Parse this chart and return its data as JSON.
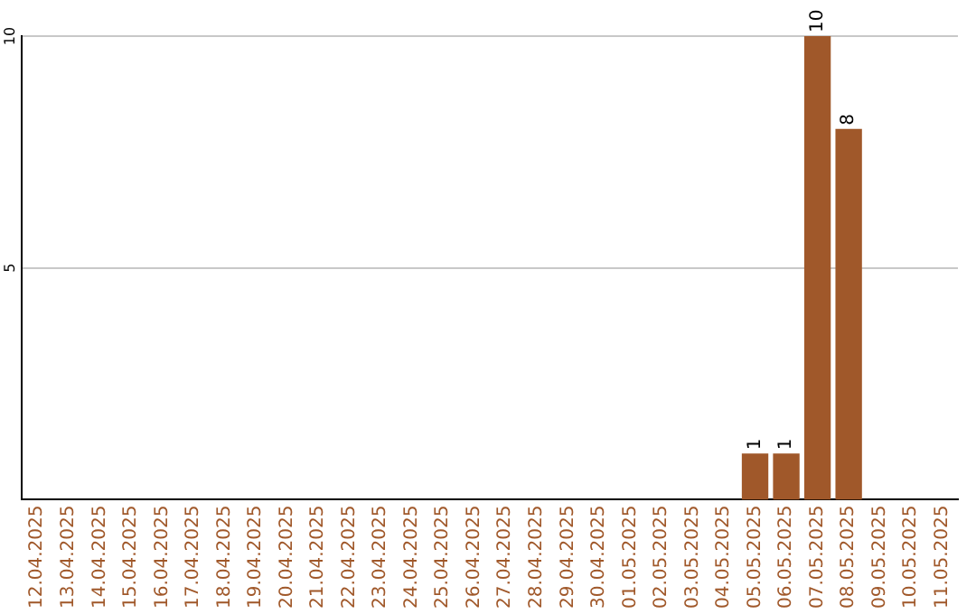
{
  "chart_data": {
    "type": "bar",
    "categories": [
      "12.04.2025",
      "13.04.2025",
      "14.04.2025",
      "15.04.2025",
      "16.04.2025",
      "17.04.2025",
      "18.04.2025",
      "19.04.2025",
      "20.04.2025",
      "21.04.2025",
      "22.04.2025",
      "23.04.2025",
      "24.04.2025",
      "25.04.2025",
      "26.04.2025",
      "27.04.2025",
      "28.04.2025",
      "29.04.2025",
      "30.04.2025",
      "01.05.2025",
      "02.05.2025",
      "03.05.2025",
      "04.05.2025",
      "05.05.2025",
      "06.05.2025",
      "07.05.2025",
      "08.05.2025",
      "09.05.2025",
      "10.05.2025",
      "11.05.2025"
    ],
    "values": [
      0,
      0,
      0,
      0,
      0,
      0,
      0,
      0,
      0,
      0,
      0,
      0,
      0,
      0,
      0,
      0,
      0,
      0,
      0,
      0,
      0,
      0,
      0,
      1,
      1,
      10,
      8,
      0,
      0,
      0
    ],
    "value_labels": [
      null,
      null,
      null,
      null,
      null,
      null,
      null,
      null,
      null,
      null,
      null,
      null,
      null,
      null,
      null,
      null,
      null,
      null,
      null,
      null,
      null,
      null,
      null,
      "1",
      "1",
      "10",
      "8",
      null,
      null,
      null
    ],
    "color": "#a0582a",
    "ylim": [
      0,
      10
    ],
    "yticks": [
      5,
      10
    ],
    "grid": "y",
    "legend": false
  }
}
